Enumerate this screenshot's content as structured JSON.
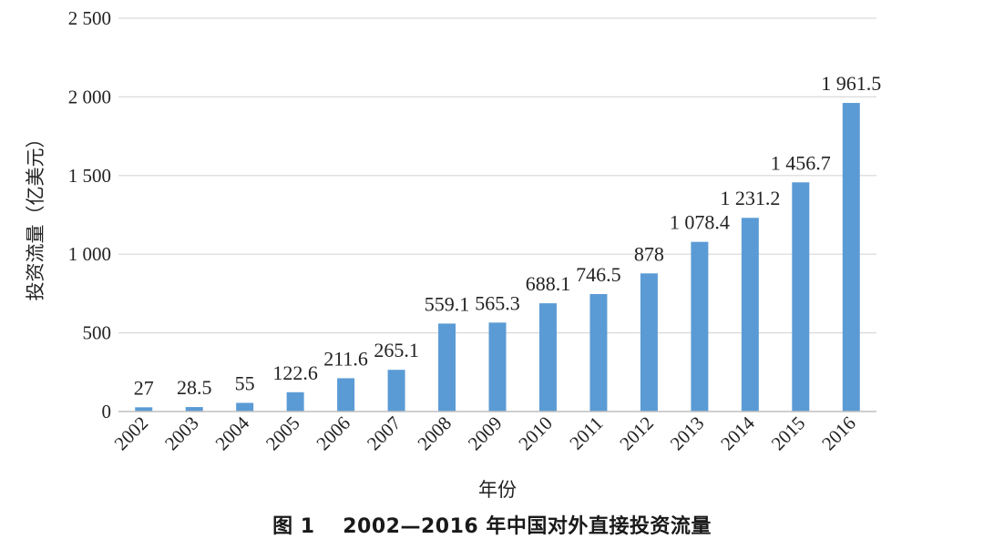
{
  "chart_data": {
    "type": "bar",
    "title": "",
    "caption": "图 1　 2002—2016 年中国对外直接投资流量",
    "xlabel": "年份",
    "ylabel": "投资流量（亿美元）",
    "ylim": [
      0,
      2500
    ],
    "yticks": [
      0,
      500,
      1000,
      1500,
      2000,
      2500
    ],
    "ytick_labels": [
      "0",
      "500",
      "1 000",
      "1 500",
      "2 000",
      "2 500"
    ],
    "grid": true,
    "bar_color": "#5b9bd5",
    "categories": [
      "2002",
      "2003",
      "2004",
      "2005",
      "2006",
      "2007",
      "2008",
      "2009",
      "2010",
      "2011",
      "2012",
      "2013",
      "2014",
      "2015",
      "2016"
    ],
    "values": [
      27,
      28.5,
      55,
      122.6,
      211.6,
      265.1,
      559.1,
      565.3,
      688.1,
      746.5,
      878,
      1078.4,
      1231.2,
      1456.7,
      1961.5
    ],
    "value_labels": [
      "27",
      "28.5",
      "55",
      "122.6",
      "211.6",
      "265.1",
      "559.1",
      "565.3",
      "688.1",
      "746.5",
      "878",
      "1 078.4",
      "1 231.2",
      "1 456.7",
      "1 961.5"
    ]
  }
}
